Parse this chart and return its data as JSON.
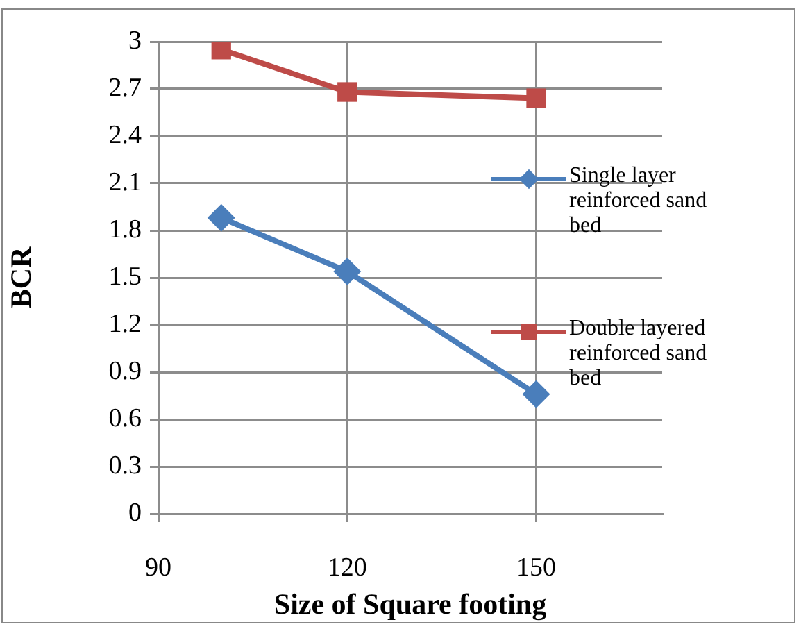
{
  "chart_data": {
    "type": "line",
    "xlabel": "Size of Square footing",
    "ylabel": "BCR",
    "x": [
      100,
      120,
      150
    ],
    "series": [
      {
        "name": "Single layer reinforced sand bed",
        "color": "#4a7ebb",
        "marker": "diamond",
        "values": [
          1.88,
          1.54,
          0.76
        ]
      },
      {
        "name": "Double layered reinforced sand bed",
        "color": "#be4b48",
        "marker": "square",
        "values": [
          2.95,
          2.68,
          2.64
        ]
      }
    ],
    "xlim": [
      90,
      170
    ],
    "xticks": [
      90,
      120,
      150
    ],
    "ylim": [
      0,
      3
    ],
    "yticks": [
      0,
      0.3,
      0.6,
      0.9,
      1.2,
      1.5,
      1.8,
      2.1,
      2.4,
      2.7,
      3
    ],
    "grid": true,
    "legend": "right"
  }
}
